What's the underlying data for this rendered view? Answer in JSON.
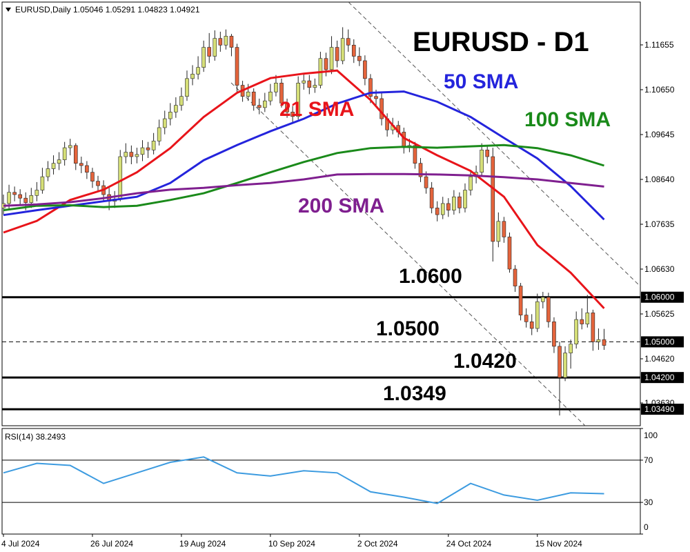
{
  "chart_data": {
    "type": "candlestick",
    "header": "EURUSD,Daily  1.05046 1.05291 1.04823 1.04921",
    "title": "EURUSD - D1",
    "ylim": [
      1.0312,
      1.12583
    ],
    "yticks": [
      1.11655,
      {
        "value": 1.1065,
        "label": "1.10650"
      },
      1.09645,
      {
        "value": 1.0864,
        "label": "1.08640"
      },
      1.07635,
      {
        "value": 1.0663,
        "label": "1.06630"
      },
      1.05625,
      {
        "value": 1.0462,
        "label": "1.04620"
      },
      {
        "value": 1.0363,
        "label": "1.03630"
      }
    ],
    "xticks": [
      {
        "value": 0,
        "label": "4 Jul 2024"
      },
      {
        "value": 16,
        "label": "26 Jul 2024"
      },
      {
        "value": 32,
        "label": "19 Aug 2024"
      },
      {
        "value": 48,
        "label": "10 Sep 2024"
      },
      {
        "value": 64,
        "label": "2 Oct 2024"
      },
      {
        "value": 80,
        "label": "24 Oct 2024"
      },
      {
        "value": 96,
        "label": "15 Nov 2024"
      }
    ],
    "bull_color": "#d6df78",
    "bear_color": "#e4643c",
    "ohlc": [
      [
        1.08,
        1.083,
        1.0785,
        1.081
      ],
      [
        1.081,
        1.0852,
        1.0798,
        1.0835
      ],
      [
        1.0835,
        1.0848,
        1.0815,
        1.083
      ],
      [
        1.083,
        1.0842,
        1.0805,
        1.0822
      ],
      [
        1.0822,
        1.0835,
        1.0795,
        1.0812
      ],
      [
        1.0812,
        1.0845,
        1.08,
        1.0828
      ],
      [
        1.0828,
        1.0858,
        1.0815,
        1.084
      ],
      [
        1.084,
        1.089,
        1.0832,
        1.087
      ],
      [
        1.087,
        1.0905,
        1.086,
        1.0888
      ],
      [
        1.0888,
        1.0918,
        1.0875,
        1.09
      ],
      [
        1.09,
        1.0925,
        1.0885,
        1.0908
      ],
      [
        1.0908,
        1.0948,
        1.0895,
        1.0935
      ],
      [
        1.0935,
        1.0955,
        1.0918,
        1.094
      ],
      [
        1.094,
        1.0945,
        1.0885,
        1.09
      ],
      [
        1.09,
        1.0915,
        1.0878,
        1.0895
      ],
      [
        1.0895,
        1.0905,
        1.0865,
        1.088
      ],
      [
        1.088,
        1.089,
        1.0845,
        1.086
      ],
      [
        1.086,
        1.0872,
        1.0838,
        1.085
      ],
      [
        1.085,
        1.0862,
        1.0815,
        1.083
      ],
      [
        1.083,
        1.0845,
        1.0795,
        1.0815
      ],
      [
        1.0815,
        1.0838,
        1.08,
        1.082
      ],
      [
        1.082,
        1.093,
        1.0815,
        1.0915
      ],
      [
        1.0915,
        1.0945,
        1.09,
        1.0925
      ],
      [
        1.0925,
        1.094,
        1.0898,
        1.0915
      ],
      [
        1.0915,
        1.0935,
        1.09,
        1.092
      ],
      [
        1.092,
        1.0952,
        1.0905,
        1.0935
      ],
      [
        1.0935,
        1.0948,
        1.0912,
        1.093
      ],
      [
        1.093,
        1.0968,
        1.092,
        1.095
      ],
      [
        1.095,
        1.0998,
        1.094,
        1.098
      ],
      [
        1.098,
        1.1018,
        1.0965,
        1.1
      ],
      [
        1.1,
        1.1035,
        1.0985,
        1.1015
      ],
      [
        1.1015,
        1.1048,
        1.1002,
        1.103
      ],
      [
        1.103,
        1.107,
        1.1018,
        1.105
      ],
      [
        1.105,
        1.1108,
        1.104,
        1.109
      ],
      [
        1.109,
        1.112,
        1.1075,
        1.11
      ],
      [
        1.11,
        1.114,
        1.1088,
        1.1115
      ],
      [
        1.1115,
        1.1175,
        1.1105,
        1.116
      ],
      [
        1.116,
        1.1192,
        1.1125,
        1.114
      ],
      [
        1.114,
        1.1198,
        1.113,
        1.118
      ],
      [
        1.118,
        1.1195,
        1.115,
        1.1165
      ],
      [
        1.1165,
        1.12,
        1.1155,
        1.1185
      ],
      [
        1.1185,
        1.119,
        1.114,
        1.116
      ],
      [
        1.116,
        1.1168,
        1.106,
        1.1075
      ],
      [
        1.1075,
        1.1085,
        1.1038,
        1.105
      ],
      [
        1.105,
        1.1078,
        1.104,
        1.106
      ],
      [
        1.106,
        1.1068,
        1.1018,
        1.103
      ],
      [
        1.103,
        1.1045,
        1.101,
        1.1025
      ],
      [
        1.1025,
        1.1058,
        1.1015,
        1.104
      ],
      [
        1.104,
        1.1078,
        1.103,
        1.106
      ],
      [
        1.106,
        1.1098,
        1.105,
        1.108
      ],
      [
        1.108,
        1.109,
        1.1025,
        1.1035
      ],
      [
        1.1035,
        1.1045,
        1.1002,
        1.1015
      ],
      [
        1.1015,
        1.1028,
        1.099,
        1.1005
      ],
      [
        1.1005,
        1.1095,
        1.0998,
        1.108
      ],
      [
        1.108,
        1.1102,
        1.1065,
        1.1085
      ],
      [
        1.1085,
        1.1098,
        1.1055,
        1.107
      ],
      [
        1.107,
        1.109,
        1.1058,
        1.1075
      ],
      [
        1.1075,
        1.115,
        1.1068,
        1.1135
      ],
      [
        1.1135,
        1.1148,
        1.1095,
        1.111
      ],
      [
        1.111,
        1.1185,
        1.11,
        1.116
      ],
      [
        1.116,
        1.1175,
        1.1115,
        1.113
      ],
      [
        1.113,
        1.1205,
        1.1122,
        1.118
      ],
      [
        1.118,
        1.12,
        1.115,
        1.1165
      ],
      [
        1.1165,
        1.1178,
        1.1125,
        1.114
      ],
      [
        1.114,
        1.116,
        1.1118,
        1.113
      ],
      [
        1.113,
        1.1142,
        1.1075,
        1.109
      ],
      [
        1.109,
        1.11,
        1.1035,
        1.105
      ],
      [
        1.105,
        1.1065,
        1.103,
        1.1045
      ],
      [
        1.1045,
        1.1058,
        1.0985,
        1.1
      ],
      [
        1.1,
        1.1012,
        1.096,
        1.0975
      ],
      [
        1.0975,
        1.1002,
        1.0965,
        1.0985
      ],
      [
        1.0985,
        1.0995,
        1.0958,
        1.097
      ],
      [
        1.097,
        1.098,
        1.0922,
        1.0935
      ],
      [
        1.0935,
        1.0955,
        1.0925,
        1.094
      ],
      [
        1.094,
        1.0948,
        1.0888,
        1.09
      ],
      [
        1.09,
        1.0912,
        1.0858,
        1.087
      ],
      [
        1.087,
        1.0882,
        1.0832,
        1.0845
      ],
      [
        1.0845,
        1.0858,
        1.0788,
        1.08
      ],
      [
        1.08,
        1.0815,
        1.077,
        1.0785
      ],
      [
        1.0785,
        1.0825,
        1.0775,
        1.081
      ],
      [
        1.081,
        1.0822,
        1.078,
        1.0795
      ],
      [
        1.0795,
        1.084,
        1.0785,
        1.0825
      ],
      [
        1.0825,
        1.0835,
        1.0788,
        1.08
      ],
      [
        1.08,
        1.0855,
        1.079,
        1.084
      ],
      [
        1.084,
        1.0885,
        1.0828,
        1.087
      ],
      [
        1.087,
        1.0895,
        1.0855,
        1.088
      ],
      [
        1.088,
        1.0945,
        1.087,
        1.093
      ],
      [
        1.093,
        1.094,
        1.09,
        1.0915
      ],
      [
        1.0915,
        1.0935,
        1.068,
        1.0725
      ],
      [
        1.0725,
        1.079,
        1.0712,
        1.077
      ],
      [
        1.077,
        1.078,
        1.0722,
        1.0735
      ],
      [
        1.0735,
        1.0745,
        1.0655,
        1.0663
      ],
      [
        1.0663,
        1.0672,
        1.0612,
        1.0625
      ],
      [
        1.0625,
        1.0632,
        1.0548,
        1.056
      ],
      [
        1.056,
        1.0575,
        1.0532,
        1.0545
      ],
      [
        1.0545,
        1.0562,
        1.0515,
        1.053
      ],
      [
        1.053,
        1.0608,
        1.0522,
        1.059
      ],
      [
        1.059,
        1.0612,
        1.0575,
        1.06
      ],
      [
        1.06,
        1.061,
        1.0532,
        1.0545
      ],
      [
        1.0545,
        1.0555,
        1.0475,
        1.049
      ],
      [
        1.049,
        1.05,
        1.0335,
        1.042
      ],
      [
        1.042,
        1.049,
        1.0412,
        1.0475
      ],
      [
        1.0475,
        1.0505,
        1.044,
        1.0495
      ],
      [
        1.0495,
        1.0568,
        1.0485,
        1.055
      ],
      [
        1.055,
        1.0575,
        1.0528,
        1.054
      ],
      [
        1.054,
        1.0605,
        1.0532,
        1.0565
      ],
      [
        1.0565,
        1.0572,
        1.048,
        1.05
      ],
      [
        1.05,
        1.053,
        1.0482,
        1.0505
      ],
      [
        1.0505,
        1.0529,
        1.0482,
        1.0492
      ]
    ],
    "x": [
      0,
      6,
      12,
      18,
      24,
      30,
      36,
      42,
      48,
      54,
      60,
      66,
      72,
      78,
      84,
      90,
      96,
      102,
      108
    ],
    "series": [
      {
        "name": "21 SMA",
        "color": "#e8141a",
        "values": [
          1.0745,
          1.0771,
          1.0818,
          1.0841,
          1.088,
          1.0934,
          1.1004,
          1.1058,
          1.1091,
          1.1101,
          1.1108,
          1.1042,
          1.0957,
          1.0918,
          1.0883,
          1.0825,
          1.0717,
          1.0655,
          1.0575
        ]
      },
      {
        "name": "50 SMA",
        "color": "#2424dc",
        "values": [
          1.0784,
          1.0795,
          1.0805,
          1.0815,
          1.0825,
          1.0856,
          1.0907,
          1.0941,
          1.0972,
          1.1,
          1.1034,
          1.1058,
          1.1061,
          1.1038,
          1.1004,
          1.0957,
          1.0911,
          1.0849,
          1.0774
        ]
      },
      {
        "name": "100 SMA",
        "color": "#1a8a1a",
        "values": [
          1.0795,
          1.0805,
          1.0806,
          1.0802,
          1.0805,
          1.0818,
          1.0833,
          1.0856,
          1.088,
          1.0903,
          1.0923,
          1.0934,
          1.0937,
          1.0935,
          1.0938,
          1.0941,
          1.0934,
          1.0918,
          1.0895
        ]
      },
      {
        "name": "200 SMA",
        "color": "#7f1f8f",
        "values": [
          1.0805,
          1.0808,
          1.0813,
          1.0822,
          1.0833,
          1.0841,
          1.0845,
          1.0851,
          1.0856,
          1.0864,
          1.0875,
          1.0876,
          1.0876,
          1.0875,
          1.0873,
          1.0869,
          1.0864,
          1.0856,
          1.0848
        ]
      }
    ],
    "levels": [
      {
        "value": 1.06,
        "label": "1.0600",
        "axis_label": "1.06000",
        "dashed": false
      },
      {
        "value": 1.05,
        "label": "1.0500",
        "axis_label": "1.05000",
        "dashed": true
      },
      {
        "value": 1.042,
        "label": "1.0420",
        "axis_label": "1.04200",
        "dashed": false
      },
      {
        "value": 1.0349,
        "label": "1.0349",
        "axis_label": "1.03490",
        "dashed": false
      }
    ],
    "rsi": {
      "label": "RSI(14) 38.2493",
      "color": "#3c9be0",
      "ylim": [
        0,
        100
      ],
      "yticks": [
        0,
        30,
        70,
        100
      ],
      "levels": [
        30,
        70
      ],
      "values": [
        58,
        67,
        65,
        48,
        58,
        68,
        73,
        58,
        55,
        60,
        58,
        40,
        35,
        29,
        48,
        37,
        32,
        39,
        38.2493
      ]
    }
  }
}
